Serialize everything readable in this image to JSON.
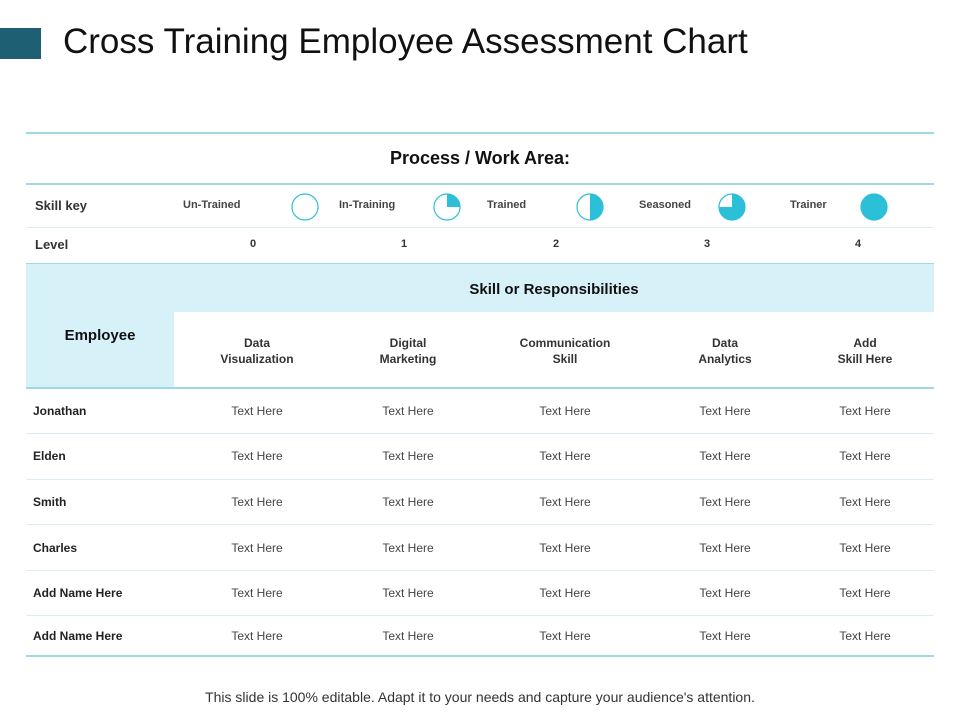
{
  "title": "Cross Training Employee Assessment Chart",
  "work_area": "Process / Work Area:",
  "skill_key": {
    "label": "Skill key",
    "items": [
      {
        "label": "Un-Trained",
        "icon": "circle-empty-icon",
        "fill": 0
      },
      {
        "label": "In-Training",
        "icon": "circle-quarter-icon",
        "fill": 0.25
      },
      {
        "label": "Trained",
        "icon": "circle-half-icon",
        "fill": 0.5
      },
      {
        "label": "Seasoned",
        "icon": "circle-three-quarter-icon",
        "fill": 0.75
      },
      {
        "label": "Trainer",
        "icon": "circle-full-icon",
        "fill": 1
      }
    ],
    "icon_color": "#2bbfd8"
  },
  "level": {
    "label": "Level",
    "values": [
      "0",
      "1",
      "2",
      "3",
      "4"
    ]
  },
  "table": {
    "employee_header": "Employee",
    "skills_header": "Skill or Responsibilities",
    "columns": [
      {
        "line1": "Data",
        "line2": "Visualization"
      },
      {
        "line1": "Digital",
        "line2": "Marketing"
      },
      {
        "line1": "Communication",
        "line2": "Skill"
      },
      {
        "line1": "Data",
        "line2": "Analytics"
      },
      {
        "line1": "Add",
        "line2": "Skill Here"
      }
    ],
    "rows": [
      {
        "name": "Jonathan",
        "cells": [
          "Text Here",
          "Text Here",
          "Text Here",
          "Text Here",
          "Text Here"
        ]
      },
      {
        "name": "Elden",
        "cells": [
          "Text Here",
          "Text Here",
          "Text Here",
          "Text Here",
          "Text Here"
        ]
      },
      {
        "name": "Smith",
        "cells": [
          "Text Here",
          "Text Here",
          "Text Here",
          "Text Here",
          "Text Here"
        ]
      },
      {
        "name": "Charles",
        "cells": [
          "Text Here",
          "Text Here",
          "Text Here",
          "Text Here",
          "Text Here"
        ]
      },
      {
        "name": "Add Name Here",
        "cells": [
          "Text Here",
          "Text Here",
          "Text Here",
          "Text Here",
          "Text Here"
        ]
      },
      {
        "name": "Add Name Here",
        "cells": [
          "Text Here",
          "Text Here",
          "Text Here",
          "Text Here",
          "Text Here"
        ]
      }
    ]
  },
  "footer": "This slide is 100% editable. Adapt it to your needs and capture your audience's attention.",
  "colors": {
    "accent": "#1f5f74",
    "teal_line": "#9fd8e4",
    "header_band": "#d6f1f8"
  }
}
